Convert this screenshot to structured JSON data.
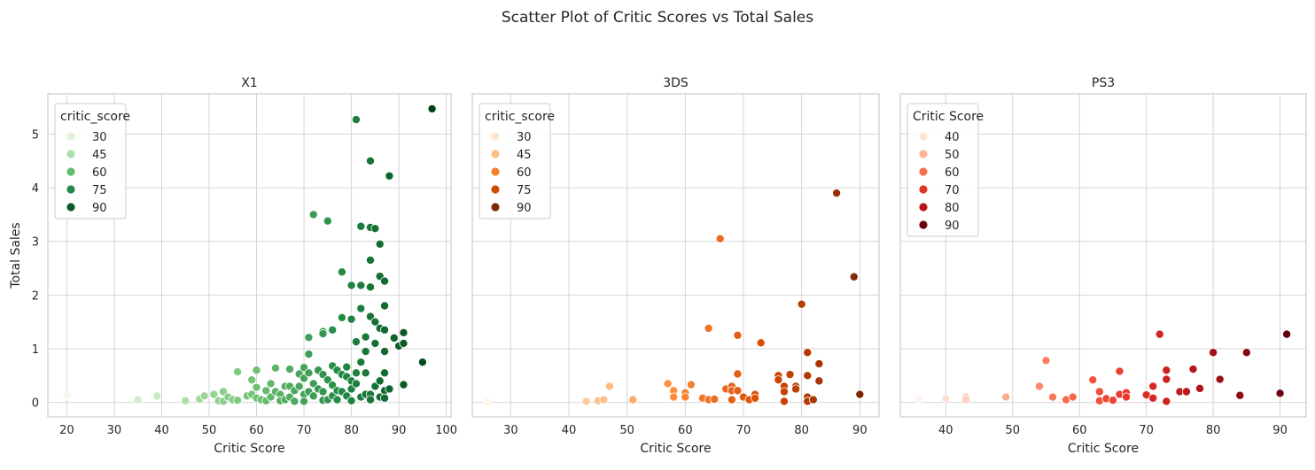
{
  "figure": {
    "title": "Scatter Plot of Critic Scores vs Total Sales"
  },
  "chart_data": [
    {
      "type": "scatter",
      "title": "X1",
      "xlabel": "Critic Score",
      "ylabel": "Total Sales",
      "xlim": [
        16,
        101
      ],
      "ylim": [
        -0.27,
        5.75
      ],
      "xticks": [
        20,
        30,
        40,
        50,
        60,
        70,
        80,
        90,
        100
      ],
      "yticks": [
        0,
        1,
        2,
        3,
        4,
        5
      ],
      "grid": true,
      "legend": {
        "title": "critic_score",
        "position": "top-left",
        "entries": [
          {
            "label": "30",
            "color": "#e2f3dc"
          },
          {
            "label": "45",
            "color": "#aedea7"
          },
          {
            "label": "60",
            "color": "#63bb6d"
          },
          {
            "label": "75",
            "color": "#24874a"
          },
          {
            "label": "90",
            "color": "#0a5a2b"
          }
        ]
      },
      "colormap": {
        "vmin": 20,
        "vmax": 97,
        "stops": [
          "#f2faef",
          "#c7e9c0",
          "#74c476",
          "#238b45",
          "#00441b"
        ]
      },
      "points": [
        [
          20,
          0.13
        ],
        [
          35,
          0.05
        ],
        [
          39,
          0.12
        ],
        [
          45,
          0.03
        ],
        [
          48,
          0.06
        ],
        [
          49,
          0.12
        ],
        [
          51,
          0.15
        ],
        [
          52,
          0.03
        ],
        [
          53,
          0.2
        ],
        [
          53,
          0.02
        ],
        [
          54,
          0.1
        ],
        [
          55,
          0.05
        ],
        [
          56,
          0.57
        ],
        [
          56,
          0.04
        ],
        [
          58,
          0.12
        ],
        [
          59,
          0.42
        ],
        [
          59,
          0.15
        ],
        [
          60,
          0.6
        ],
        [
          60,
          0.28
        ],
        [
          60,
          0.08
        ],
        [
          61,
          0.05
        ],
        [
          62,
          0.22
        ],
        [
          62,
          0.03
        ],
        [
          63,
          0.35
        ],
        [
          63,
          0.1
        ],
        [
          64,
          0.64
        ],
        [
          64,
          0.2
        ],
        [
          65,
          0.15
        ],
        [
          65,
          0.03
        ],
        [
          66,
          0.3
        ],
        [
          66,
          0.05
        ],
        [
          67,
          0.62
        ],
        [
          67,
          0.3
        ],
        [
          67,
          0.1
        ],
        [
          68,
          0.22
        ],
        [
          68,
          0.02
        ],
        [
          69,
          0.53
        ],
        [
          69,
          0.3
        ],
        [
          70,
          0.65
        ],
        [
          70,
          0.45
        ],
        [
          70,
          0.15
        ],
        [
          70,
          0.02
        ],
        [
          71,
          1.21
        ],
        [
          71,
          0.55
        ],
        [
          71,
          0.9
        ],
        [
          71,
          0.2
        ],
        [
          72,
          3.5
        ],
        [
          72,
          0.35
        ],
        [
          72,
          0.12
        ],
        [
          73,
          0.6
        ],
        [
          73,
          0.25
        ],
        [
          74,
          1.32
        ],
        [
          74,
          1.28
        ],
        [
          74,
          0.52
        ],
        [
          74,
          0.2
        ],
        [
          74,
          0.04
        ],
        [
          75,
          3.38
        ],
        [
          75,
          0.42
        ],
        [
          75,
          0.05
        ],
        [
          76,
          1.35
        ],
        [
          76,
          0.68
        ],
        [
          76,
          0.32
        ],
        [
          76,
          0.12
        ],
        [
          77,
          0.6
        ],
        [
          77,
          0.22
        ],
        [
          77,
          0.05
        ],
        [
          78,
          2.43
        ],
        [
          78,
          1.58
        ],
        [
          78,
          0.52
        ],
        [
          78,
          0.2
        ],
        [
          79,
          0.66
        ],
        [
          79,
          0.48
        ],
        [
          79,
          0.12
        ],
        [
          80,
          2.18
        ],
        [
          80,
          1.55
        ],
        [
          80,
          0.4
        ],
        [
          80,
          0.25
        ],
        [
          80,
          0.03
        ],
        [
          81,
          5.27
        ],
        [
          81,
          1.13
        ],
        [
          81,
          0.55
        ],
        [
          81,
          0.35
        ],
        [
          82,
          3.28
        ],
        [
          82,
          2.18
        ],
        [
          82,
          1.75
        ],
        [
          82,
          0.75
        ],
        [
          82,
          0.1
        ],
        [
          83,
          1.22
        ],
        [
          83,
          0.95
        ],
        [
          83,
          0.55
        ],
        [
          83,
          0.15
        ],
        [
          84,
          4.5
        ],
        [
          84,
          3.26
        ],
        [
          84,
          2.65
        ],
        [
          84,
          2.15
        ],
        [
          84,
          1.6
        ],
        [
          84,
          0.15
        ],
        [
          84,
          0.05
        ],
        [
          85,
          3.24
        ],
        [
          85,
          1.5
        ],
        [
          85,
          1.1
        ],
        [
          85,
          0.3
        ],
        [
          86,
          2.95
        ],
        [
          86,
          2.35
        ],
        [
          86,
          1.38
        ],
        [
          86,
          0.1
        ],
        [
          86,
          0.4
        ],
        [
          87,
          2.26
        ],
        [
          87,
          1.8
        ],
        [
          87,
          1.35
        ],
        [
          87,
          0.95
        ],
        [
          87,
          0.55
        ],
        [
          87,
          0.22
        ],
        [
          87,
          0.08
        ],
        [
          88,
          4.22
        ],
        [
          88,
          0.25
        ],
        [
          89,
          1.2
        ],
        [
          90,
          1.05
        ],
        [
          91,
          1.3
        ],
        [
          91,
          1.1
        ],
        [
          91,
          0.33
        ],
        [
          95,
          0.75
        ],
        [
          97,
          5.47
        ]
      ]
    },
    {
      "type": "scatter",
      "title": "3DS",
      "xlabel": "Critic Score",
      "ylabel": "",
      "xlim": [
        23.4,
        93.3
      ],
      "ylim": [
        -0.27,
        5.75
      ],
      "xticks": [
        30,
        40,
        50,
        60,
        70,
        80,
        90
      ],
      "yticks": [
        0,
        1,
        2,
        3,
        4,
        5
      ],
      "grid": true,
      "legend": {
        "title": "critic_score",
        "position": "top-left",
        "entries": [
          {
            "label": "30",
            "color": "#fee7d0"
          },
          {
            "label": "45",
            "color": "#fdbe85"
          },
          {
            "label": "60",
            "color": "#f7802e"
          },
          {
            "label": "75",
            "color": "#d24b05"
          },
          {
            "label": "90",
            "color": "#7f2704"
          }
        ]
      },
      "colormap": {
        "vmin": 26,
        "vmax": 90,
        "stops": [
          "#fff5eb",
          "#fdd0a2",
          "#fd8d3c",
          "#d94801",
          "#7f2704"
        ]
      },
      "points": [
        [
          26,
          0.01
        ],
        [
          43,
          0.02
        ],
        [
          45,
          0.03
        ],
        [
          46,
          0.05
        ],
        [
          47,
          0.3
        ],
        [
          51,
          0.05
        ],
        [
          57,
          0.35
        ],
        [
          58,
          0.22
        ],
        [
          58,
          0.1
        ],
        [
          60,
          0.18
        ],
        [
          60,
          0.1
        ],
        [
          61,
          0.33
        ],
        [
          63,
          0.08
        ],
        [
          64,
          1.38
        ],
        [
          64,
          0.05
        ],
        [
          65,
          0.06
        ],
        [
          66,
          3.05
        ],
        [
          67,
          0.25
        ],
        [
          68,
          0.3
        ],
        [
          68,
          0.22
        ],
        [
          68,
          0.05
        ],
        [
          69,
          1.25
        ],
        [
          69,
          0.53
        ],
        [
          69,
          0.22
        ],
        [
          70,
          0.1
        ],
        [
          71,
          0.05
        ],
        [
          72,
          0.15
        ],
        [
          72,
          0.08
        ],
        [
          73,
          1.11
        ],
        [
          76,
          0.5
        ],
        [
          76,
          0.42
        ],
        [
          77,
          0.3
        ],
        [
          77,
          0.2
        ],
        [
          77,
          0.02
        ],
        [
          78,
          0.52
        ],
        [
          79,
          0.3
        ],
        [
          79,
          0.25
        ],
        [
          80,
          1.83
        ],
        [
          81,
          0.93
        ],
        [
          81,
          0.5
        ],
        [
          81,
          0.1
        ],
        [
          81,
          0.02
        ],
        [
          82,
          0.05
        ],
        [
          83,
          0.72
        ],
        [
          83,
          0.4
        ],
        [
          86,
          3.9
        ],
        [
          89,
          2.34
        ],
        [
          90,
          0.15
        ]
      ]
    },
    {
      "type": "scatter",
      "title": "PS3",
      "xlabel": "Critic Score",
      "ylabel": "",
      "xlim": [
        33.2,
        93.9
      ],
      "ylim": [
        -0.27,
        5.75
      ],
      "xticks": [
        40,
        50,
        60,
        70,
        80,
        90
      ],
      "yticks": [
        0,
        1,
        2,
        3,
        4,
        5
      ],
      "grid": true,
      "legend": {
        "title": "Critic Score",
        "position": "top-left",
        "entries": [
          {
            "label": "40",
            "color": "#fee3d7"
          },
          {
            "label": "50",
            "color": "#fcb499"
          },
          {
            "label": "60",
            "color": "#f7704f"
          },
          {
            "label": "70",
            "color": "#e1352b"
          },
          {
            "label": "80",
            "color": "#bb1419"
          },
          {
            "label": "90",
            "color": "#6a000d"
          }
        ]
      },
      "colormap": {
        "vmin": 36,
        "vmax": 91,
        "stops": [
          "#fff5f0",
          "#fcbba1",
          "#fb6a4a",
          "#e22e27",
          "#a50f15",
          "#67000d"
        ]
      },
      "points": [
        [
          36,
          0.07
        ],
        [
          40,
          0.07
        ],
        [
          43,
          0.1
        ],
        [
          43,
          0.05
        ],
        [
          49,
          0.1
        ],
        [
          54,
          0.3
        ],
        [
          55,
          0.78
        ],
        [
          56,
          0.1
        ],
        [
          58,
          0.05
        ],
        [
          59,
          0.1
        ],
        [
          62,
          0.42
        ],
        [
          63,
          0.2
        ],
        [
          63,
          0.03
        ],
        [
          64,
          0.07
        ],
        [
          65,
          0.04
        ],
        [
          66,
          0.58
        ],
        [
          66,
          0.15
        ],
        [
          67,
          0.18
        ],
        [
          67,
          0.1
        ],
        [
          70,
          0.14
        ],
        [
          71,
          0.3
        ],
        [
          71,
          0.08
        ],
        [
          72,
          1.27
        ],
        [
          73,
          0.6
        ],
        [
          73,
          0.43
        ],
        [
          73,
          0.02
        ],
        [
          75,
          0.2
        ],
        [
          76,
          0.2
        ],
        [
          77,
          0.62
        ],
        [
          78,
          0.26
        ],
        [
          80,
          0.93
        ],
        [
          81,
          0.43
        ],
        [
          84,
          0.13
        ],
        [
          85,
          0.93
        ],
        [
          90,
          0.17
        ],
        [
          91,
          1.27
        ]
      ]
    }
  ]
}
